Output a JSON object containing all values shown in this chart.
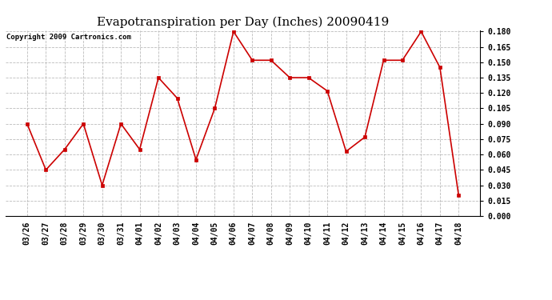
{
  "title": "Evapotranspiration per Day (Inches) 20090419",
  "copyright": "Copyright 2009 Cartronics.com",
  "labels": [
    "03/26",
    "03/27",
    "03/28",
    "03/29",
    "03/30",
    "03/31",
    "04/01",
    "04/02",
    "04/03",
    "04/04",
    "04/05",
    "04/06",
    "04/07",
    "04/08",
    "04/09",
    "04/10",
    "04/11",
    "04/12",
    "04/13",
    "04/14",
    "04/15",
    "04/16",
    "04/17",
    "04/18"
  ],
  "values": [
    0.09,
    0.045,
    0.065,
    0.09,
    0.03,
    0.09,
    0.065,
    0.135,
    0.115,
    0.055,
    0.105,
    0.18,
    0.152,
    0.152,
    0.135,
    0.135,
    0.122,
    0.063,
    0.077,
    0.152,
    0.152,
    0.18,
    0.145,
    0.02
  ],
  "ylim": [
    0.0,
    0.1815
  ],
  "yticks": [
    0.0,
    0.015,
    0.03,
    0.045,
    0.06,
    0.075,
    0.09,
    0.105,
    0.12,
    0.135,
    0.15,
    0.165,
    0.18
  ],
  "line_color": "#cc0000",
  "marker_color": "#cc0000",
  "bg_color": "#ffffff",
  "grid_color": "#bbbbbb",
  "title_fontsize": 11,
  "copyright_fontsize": 6.5,
  "tick_fontsize": 7,
  "ytick_fontsize": 7
}
